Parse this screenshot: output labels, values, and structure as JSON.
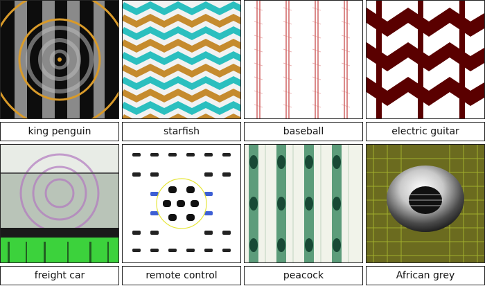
{
  "grid": {
    "items": [
      {
        "label": "king penguin",
        "icon": "concentric-stripes-image"
      },
      {
        "label": "starfish",
        "icon": "zigzag-teal-gold-image"
      },
      {
        "label": "baseball",
        "icon": "red-stitch-stripes-image"
      },
      {
        "label": "electric guitar",
        "icon": "maroon-chevron-image"
      },
      {
        "label": "freight car",
        "icon": "green-noise-rings-image"
      },
      {
        "label": "remote control",
        "icon": "button-grid-image"
      },
      {
        "label": "peacock",
        "icon": "feather-columns-image"
      },
      {
        "label": "African grey",
        "icon": "gray-sphere-image"
      }
    ]
  },
  "colors": {
    "border": "#222222",
    "gold": "#d89a2a",
    "teal": "#2bbfbf",
    "maroon": "#5a0000",
    "red": "#c03030",
    "green": "#3cd23c"
  }
}
